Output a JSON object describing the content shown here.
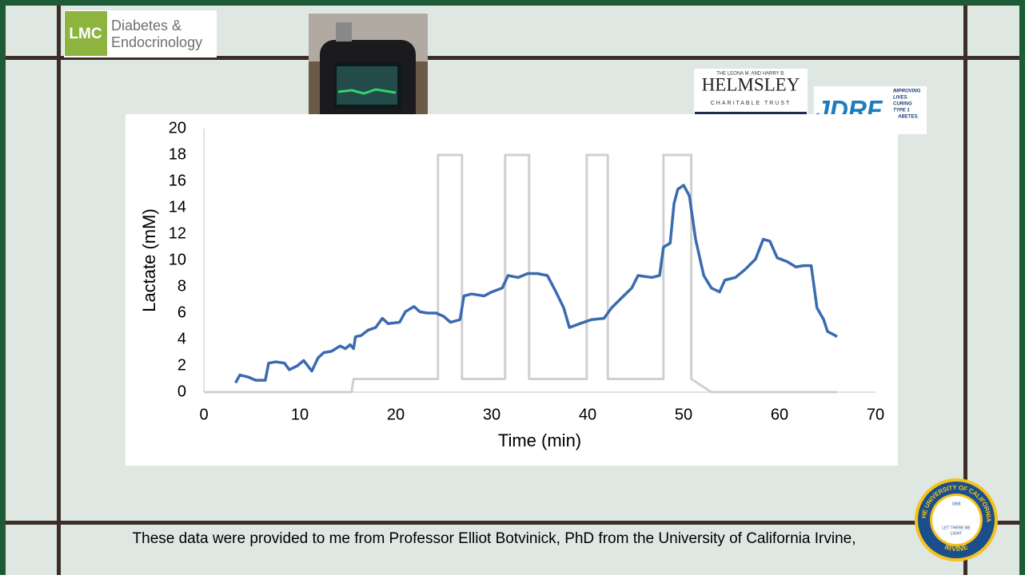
{
  "logos": {
    "lmc": {
      "mark": "LMC",
      "line1": "Diabetes &",
      "line2": "Endocrinology"
    },
    "helmsley": {
      "top": "THE LEONA M. AND HARRY B.",
      "name": "HELMSLEY",
      "bottom": "CHARITABLE TRUST"
    },
    "jdrf": {
      "name": "JDRF",
      "tagline": [
        "IMPROVING",
        "LIVES.",
        "CURING",
        "TYPE 1",
        "DIABETES."
      ]
    },
    "uc_seal": {
      "ring_top": "THE UNIVERSITY OF CALIFORNIA",
      "ring_bottom": "IRVINE",
      "motto1": "LET THERE BE",
      "motto2": "LIGHT",
      "year": "1868"
    }
  },
  "caption": "These data were provided to me from Professor Elliot Botvinick, PhD from the University of California Irvine,",
  "chart_data": {
    "type": "line",
    "xlabel": "Time (min)",
    "ylabel": "Lactate (mM)",
    "xlim": [
      0,
      70
    ],
    "ylim": [
      0,
      20
    ],
    "xticks": [
      0,
      10,
      20,
      30,
      40,
      50,
      60,
      70
    ],
    "yticks": [
      0,
      2,
      4,
      6,
      8,
      10,
      12,
      14,
      16,
      18,
      20
    ],
    "grid": false,
    "series": [
      {
        "color": "#3a6ab0",
        "x": [
          3.3,
          3.75,
          4.6,
          5.4,
          6.4,
          6.75,
          7.5,
          8.4,
          8.9,
          9.75,
          10.4,
          11.25,
          11.9,
          12.5,
          13.3,
          14.2,
          14.75,
          15.25,
          15.6,
          15.8,
          16.4,
          17.1,
          17.9,
          18.6,
          19.2,
          20.4,
          21,
          21.9,
          22.5,
          23.3,
          24.2,
          25,
          25.7,
          26.7,
          27.1,
          27.9,
          29.2,
          30,
          31.1,
          31.7,
          32.75,
          33.75,
          34.75,
          35.8,
          36.7,
          37.5,
          38.1,
          39.2,
          40.4,
          41.7,
          42.5,
          43.75,
          44.6,
          45.25,
          46.7,
          47.5,
          47.9,
          48.6,
          49,
          49.4,
          50,
          50.6,
          51.25,
          52.1,
          52.9,
          53.75,
          54.3,
          55.4,
          56.4,
          57.5,
          58.3,
          59,
          59.75,
          60.8,
          61.7,
          62.5,
          63.3,
          63.9,
          64.6,
          65,
          65.8,
          66
        ],
        "values": [
          0.7,
          1.3,
          1.15,
          0.9,
          0.9,
          2.2,
          2.3,
          2.2,
          1.7,
          2.0,
          2.4,
          1.6,
          2.6,
          3.0,
          3.1,
          3.5,
          3.3,
          3.6,
          3.3,
          4.2,
          4.3,
          4.7,
          4.9,
          5.6,
          5.2,
          5.3,
          6.1,
          6.5,
          6.1,
          6.0,
          6.0,
          5.75,
          5.3,
          5.5,
          7.3,
          7.45,
          7.3,
          7.6,
          7.9,
          8.85,
          8.7,
          9.0,
          9.0,
          8.85,
          7.6,
          6.4,
          4.9,
          5.2,
          5.5,
          5.6,
          6.4,
          7.3,
          7.9,
          8.85,
          8.7,
          8.85,
          11.0,
          11.3,
          14.3,
          15.4,
          15.7,
          14.9,
          11.6,
          8.85,
          7.9,
          7.6,
          8.5,
          8.7,
          9.3,
          10.1,
          11.6,
          11.45,
          10.2,
          9.9,
          9.5,
          9.6,
          9.6,
          6.4,
          5.5,
          4.6,
          4.3,
          4.2
        ]
      },
      {
        "color": "#d0d0d0",
        "x": [
          0,
          15.4,
          15.6,
          24.4,
          24.4,
          26.9,
          26.9,
          31.4,
          31.4,
          33.9,
          33.9,
          39.9,
          39.9,
          42.1,
          42.1,
          47.9,
          47.9,
          50.8,
          50.8,
          52.9,
          66
        ],
        "values": [
          0,
          0,
          1,
          1,
          18,
          18,
          1,
          1,
          18,
          18,
          1,
          1,
          18,
          18,
          1,
          1,
          18,
          18,
          1,
          0,
          0
        ]
      }
    ]
  }
}
